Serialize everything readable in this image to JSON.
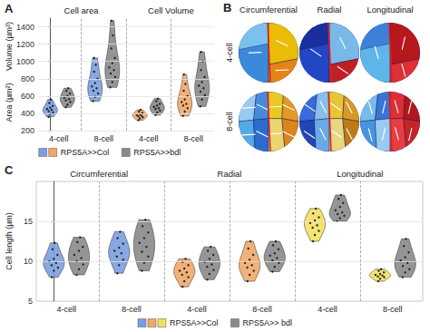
{
  "chart_data": [
    {
      "type": "violin",
      "title": "A",
      "ylabels": [
        "Area (µm²)",
        "Volume (µm³)"
      ],
      "ylim": [
        200,
        1500
      ],
      "yticks": [
        200,
        400,
        600,
        800,
        1000,
        1200,
        1400
      ],
      "grid": true,
      "legend": "bottom",
      "series": [
        {
          "name": "RPS5A>>Col",
          "colors": [
            "#7b9ee0",
            "#f0a868"
          ]
        },
        {
          "name": "RPS5A>>bdl",
          "color": "#8a8a8a"
        }
      ],
      "groups": [
        {
          "label": "Cell area",
          "subgroups": [
            {
              "label": "4-cell",
              "violins": [
                {
                  "color": "#7b9ee0",
                  "values": [
                    360,
                    390,
                    410,
                    425,
                    440,
                    450,
                    465,
                    485,
                    520,
                    560
                  ]
                },
                {
                  "color": "#8a8a8a",
                  "values": [
                    470,
                    500,
                    530,
                    550,
                    565,
                    580,
                    600,
                    630,
                    660,
                    690
                  ]
                }
              ]
            },
            {
              "label": "8-cell",
              "violins": [
                {
                  "color": "#7b9ee0",
                  "values": [
                    540,
                    590,
                    630,
                    660,
                    690,
                    710,
                    750,
                    800,
                    880,
                    960,
                    1040
                  ]
                },
                {
                  "color": "#8a8a8a",
                  "values": [
                    700,
                    760,
                    820,
                    860,
                    900,
                    930,
                    980,
                    1040,
                    1150,
                    1300,
                    1470
                  ]
                }
              ]
            }
          ]
        },
        {
          "label": "Cell Volume",
          "subgroups": [
            {
              "label": "4-cell",
              "violins": [
                {
                  "color": "#f0a868",
                  "values": [
                    320,
                    340,
                    355,
                    365,
                    372,
                    380,
                    390,
                    405,
                    420,
                    440
                  ]
                },
                {
                  "color": "#8a8a8a",
                  "values": [
                    380,
                    410,
                    430,
                    450,
                    460,
                    475,
                    490,
                    510,
                    540,
                    570
                  ]
                }
              ]
            },
            {
              "label": "8-cell",
              "violins": [
                {
                  "color": "#f0a868",
                  "values": [
                    370,
                    420,
                    460,
                    490,
                    510,
                    530,
                    560,
                    600,
                    660,
                    740,
                    850
                  ]
                },
                {
                  "color": "#8a8a8a",
                  "values": [
                    480,
                    560,
                    610,
                    650,
                    690,
                    720,
                    760,
                    820,
                    900,
                    1000,
                    1110
                  ]
                }
              ]
            }
          ]
        }
      ]
    },
    {
      "type": "violin",
      "title": "C",
      "ylabels": [
        "Cell length (µm)"
      ],
      "ylim": [
        5,
        20
      ],
      "yticks": [
        5,
        10,
        15
      ],
      "grid": true,
      "legend": "bottom",
      "series": [
        {
          "name": "RPS5A>>Col",
          "colors": [
            "#7b9ee0",
            "#f0a868",
            "#f2e060"
          ]
        },
        {
          "name": "RPS5A>> bdl",
          "color": "#8a8a8a"
        }
      ],
      "groups": [
        {
          "label": "Circumferential",
          "subgroups": [
            {
              "label": "4-cell",
              "violins": [
                {
                  "color": "#7b9ee0",
                  "values": [
                    8.0,
                    8.8,
                    9.2,
                    9.5,
                    9.8,
                    10.0,
                    10.3,
                    10.8,
                    11.5,
                    12.3
                  ]
                },
                {
                  "color": "#8a8a8a",
                  "values": [
                    8.3,
                    9.0,
                    9.6,
                    10.0,
                    10.4,
                    10.8,
                    11.3,
                    11.8,
                    12.4,
                    13.0
                  ]
                }
              ]
            },
            {
              "label": "8-cell",
              "violins": [
                {
                  "color": "#7b9ee0",
                  "values": [
                    8.5,
                    9.5,
                    10.2,
                    10.6,
                    11.0,
                    11.3,
                    11.7,
                    12.2,
                    12.9,
                    13.7
                  ]
                },
                {
                  "color": "#8a8a8a",
                  "values": [
                    8.8,
                    9.8,
                    10.6,
                    11.2,
                    11.8,
                    12.3,
                    12.9,
                    13.6,
                    14.4,
                    15.2
                  ]
                }
              ]
            }
          ]
        },
        {
          "label": "Radial",
          "subgroups": [
            {
              "label": "4-cell",
              "violins": [
                {
                  "color": "#f0a868",
                  "values": [
                    6.8,
                    7.5,
                    8.0,
                    8.3,
                    8.6,
                    8.8,
                    9.1,
                    9.5,
                    9.9,
                    10.3
                  ]
                },
                {
                  "color": "#8a8a8a",
                  "values": [
                    7.7,
                    8.4,
                    8.9,
                    9.3,
                    9.6,
                    9.9,
                    10.3,
                    10.8,
                    11.3,
                    11.8
                  ]
                }
              ]
            },
            {
              "label": "8-cell",
              "violins": [
                {
                  "color": "#f0a868",
                  "values": [
                    7.5,
                    8.3,
                    8.8,
                    9.2,
                    9.5,
                    9.8,
                    10.2,
                    10.8,
                    11.6,
                    12.5
                  ]
                },
                {
                  "color": "#8a8a8a",
                  "values": [
                    8.7,
                    9.3,
                    9.8,
                    10.1,
                    10.4,
                    10.7,
                    11.0,
                    11.5,
                    12.0,
                    12.5
                  ]
                }
              ]
            }
          ]
        },
        {
          "label": "Longitudinal",
          "subgroups": [
            {
              "label": "4-cell",
              "violins": [
                {
                  "color": "#f2e060",
                  "values": [
                    12.5,
                    13.3,
                    13.8,
                    14.2,
                    14.5,
                    14.8,
                    15.1,
                    15.5,
                    16.0,
                    16.6
                  ]
                },
                {
                  "color": "#8a8a8a",
                  "values": [
                    15.0,
                    15.4,
                    15.7,
                    15.9,
                    16.1,
                    16.4,
                    16.8,
                    17.3,
                    17.8,
                    18.3
                  ]
                }
              ]
            },
            {
              "label": "8-cell",
              "violins": [
                {
                  "color": "#f2e060",
                  "values": [
                    7.5,
                    7.8,
                    8.0,
                    8.1,
                    8.2,
                    8.3,
                    8.4,
                    8.6,
                    8.8,
                    9.0
                  ]
                },
                {
                  "color": "#8a8a8a",
                  "values": [
                    8.0,
                    8.6,
                    9.0,
                    9.4,
                    9.8,
                    10.1,
                    10.5,
                    11.1,
                    11.9,
                    12.8
                  ]
                }
              ]
            }
          ]
        }
      ]
    }
  ],
  "panel_b": {
    "title": "B",
    "columns": [
      "Circumferential",
      "Radial",
      "Longitudinal"
    ],
    "rows": [
      "4-cell",
      "8-cell"
    ]
  }
}
